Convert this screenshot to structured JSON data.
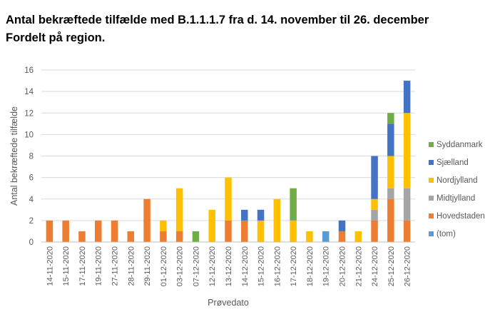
{
  "title": {
    "line1": "Antal bekræftede tilfælde med B.1.1.1.7 fra d. 14. november til 26. december",
    "line2": "Fordelt på region."
  },
  "chart_data": {
    "type": "bar",
    "stacked": true,
    "categories": [
      "14-11-2020",
      "15-11-2020",
      "17-11-2020",
      "19-11-2020",
      "27-11-2020",
      "28-11-2020",
      "29-11-2020",
      "01-12-2020",
      "03-12-2020",
      "07-12-2020",
      "12-12-2020",
      "13-12-2020",
      "14-12-2020",
      "15-12-2020",
      "16-12-2020",
      "17-12-2020",
      "18-12-2020",
      "19-12-2020",
      "20-12-2020",
      "21-12-2020",
      "24-12-2020",
      "25-12-2020",
      "26-12-2020"
    ],
    "series": [
      {
        "name": "(tom)",
        "color": "#5B9BD5",
        "values": [
          0,
          0,
          0,
          0,
          0,
          0,
          0,
          0,
          0,
          0,
          0,
          0,
          0,
          0,
          0,
          0,
          0,
          1,
          0,
          0,
          0,
          0,
          0
        ]
      },
      {
        "name": "Hovedstaden",
        "color": "#ED7D31",
        "values": [
          2,
          2,
          1,
          2,
          2,
          1,
          4,
          1,
          1,
          0,
          0,
          2,
          2,
          0,
          0,
          0,
          0,
          0,
          1,
          0,
          2,
          4,
          2
        ]
      },
      {
        "name": "Midtjylland",
        "color": "#A5A5A5",
        "values": [
          0,
          0,
          0,
          0,
          0,
          0,
          0,
          0,
          0,
          0,
          0,
          0,
          0,
          0,
          0,
          0,
          0,
          0,
          0,
          0,
          1,
          1,
          3
        ]
      },
      {
        "name": "Nordjylland",
        "color": "#FFC000",
        "values": [
          0,
          0,
          0,
          0,
          0,
          0,
          0,
          1,
          4,
          0,
          3,
          4,
          0,
          2,
          4,
          2,
          1,
          0,
          0,
          1,
          1,
          3,
          7
        ]
      },
      {
        "name": "Sjælland",
        "color": "#4472C4",
        "values": [
          0,
          0,
          0,
          0,
          0,
          0,
          0,
          0,
          0,
          0,
          0,
          0,
          1,
          1,
          0,
          0,
          0,
          0,
          1,
          0,
          4,
          3,
          3
        ]
      },
      {
        "name": "Syddanmark",
        "color": "#70AD47",
        "values": [
          0,
          0,
          0,
          0,
          0,
          0,
          0,
          0,
          0,
          1,
          0,
          0,
          0,
          0,
          0,
          3,
          0,
          0,
          0,
          0,
          0,
          1,
          0
        ]
      }
    ],
    "xlabel": "Prøvedato",
    "ylabel": "Antal bekræftede tilfælde",
    "ylim": [
      0,
      16
    ],
    "yticks": [
      "0",
      "2",
      "4",
      "6",
      "8",
      "10",
      "12",
      "14",
      "16"
    ],
    "grid": true,
    "legend_position": "right"
  }
}
